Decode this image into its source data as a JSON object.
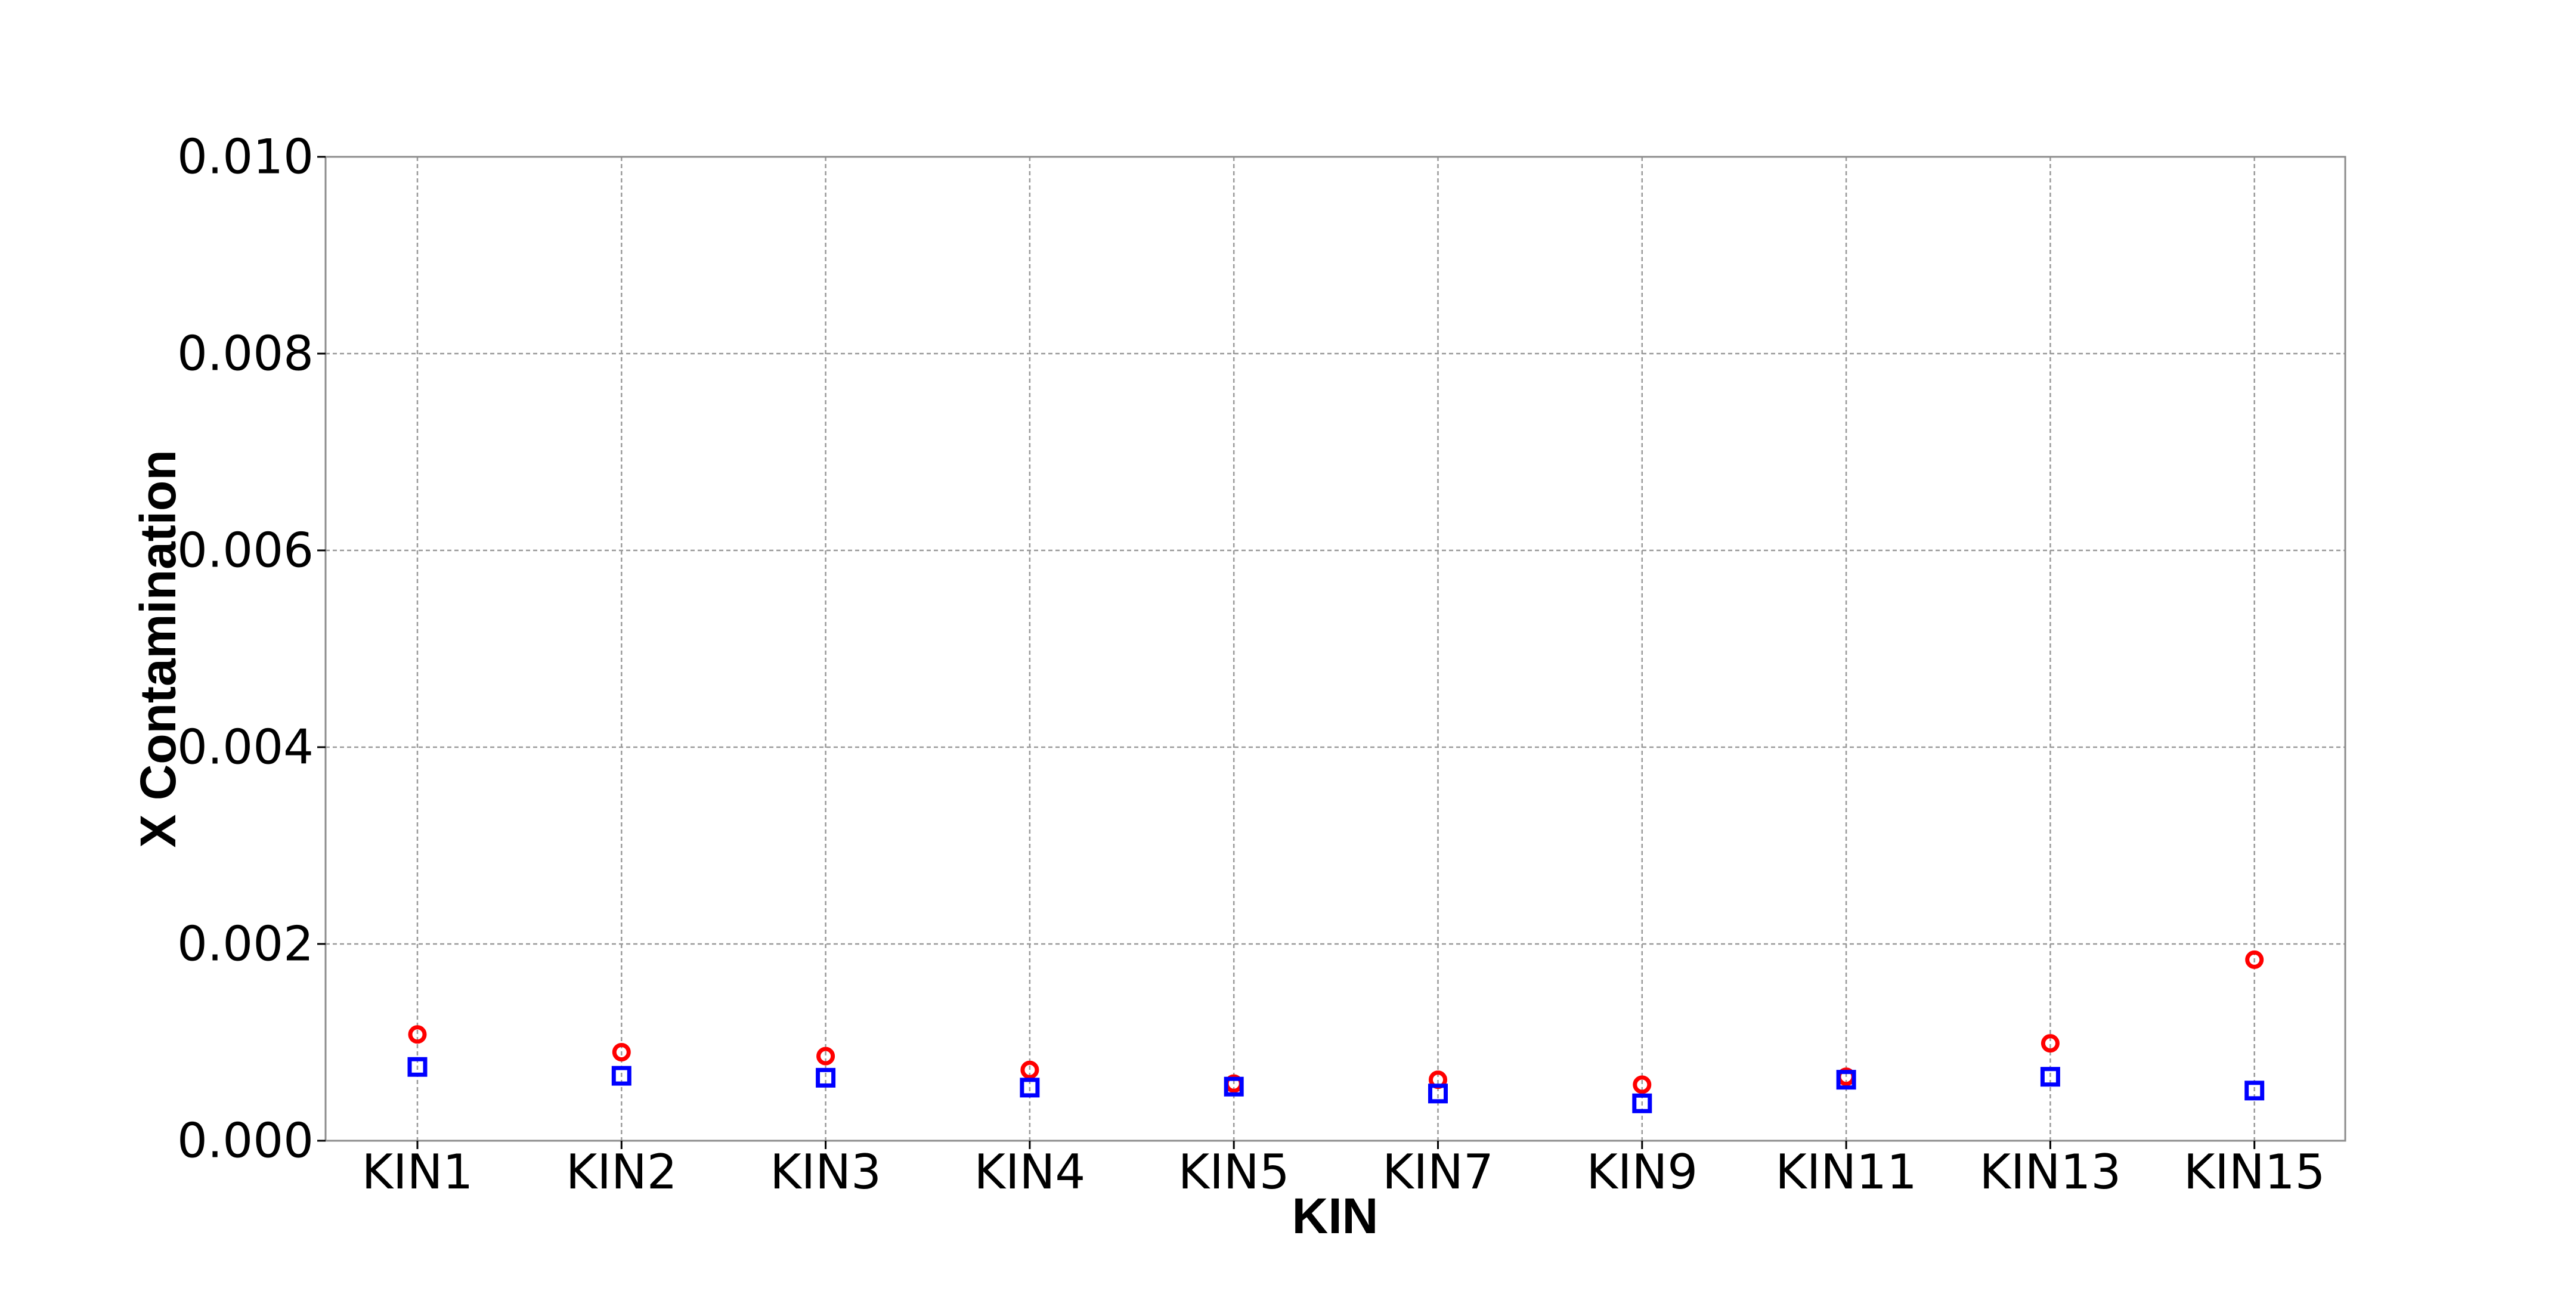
{
  "chart_data": {
    "type": "scatter",
    "title": "",
    "xlabel": "KIN",
    "ylabel": "X Contamination",
    "categories": [
      "KIN1",
      "KIN2",
      "KIN3",
      "KIN4",
      "KIN5",
      "KIN7",
      "KIN9",
      "KIN11",
      "KIN13",
      "KIN15"
    ],
    "ylim": [
      0,
      0.01
    ],
    "yticks": [
      "0.000",
      "0.002",
      "0.004",
      "0.006",
      "0.008",
      "0.010"
    ],
    "grid": true,
    "legend": "none",
    "series": [
      {
        "marker": "circle",
        "color": "#ff0000",
        "values": [
          0.00108,
          0.0009,
          0.00086,
          0.00072,
          0.00058,
          0.00062,
          0.00057,
          0.00065,
          0.00099,
          0.00184
        ]
      },
      {
        "marker": "square",
        "color": "#0000ff",
        "values": [
          0.00075,
          0.00066,
          0.00064,
          0.00054,
          0.00055,
          0.00048,
          0.00038,
          0.00062,
          0.00065,
          0.00051
        ]
      }
    ]
  }
}
